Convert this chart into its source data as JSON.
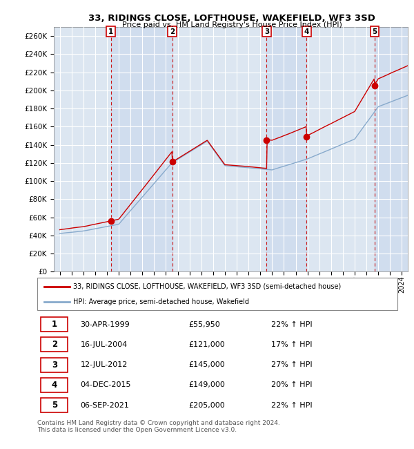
{
  "title": "33, RIDINGS CLOSE, LOFTHOUSE, WAKEFIELD, WF3 3SD",
  "subtitle": "Price paid vs. HM Land Registry's House Price Index (HPI)",
  "sale_dates_float": [
    1999.33,
    2004.54,
    2012.54,
    2015.92,
    2021.68
  ],
  "sale_prices": [
    55950,
    121000,
    145000,
    149000,
    205000
  ],
  "sale_labels": [
    "1",
    "2",
    "3",
    "4",
    "5"
  ],
  "table_rows": [
    [
      "1",
      "30-APR-1999",
      "£55,950",
      "22% ↑ HPI"
    ],
    [
      "2",
      "16-JUL-2004",
      "£121,000",
      "17% ↑ HPI"
    ],
    [
      "3",
      "12-JUL-2012",
      "£145,000",
      "27% ↑ HPI"
    ],
    [
      "4",
      "04-DEC-2015",
      "£149,000",
      "20% ↑ HPI"
    ],
    [
      "5",
      "06-SEP-2021",
      "£205,000",
      "22% ↑ HPI"
    ]
  ],
  "legend_line1": "33, RIDINGS CLOSE, LOFTHOUSE, WAKEFIELD, WF3 3SD (semi-detached house)",
  "legend_line2": "HPI: Average price, semi-detached house, Wakefield",
  "footer": "Contains HM Land Registry data © Crown copyright and database right 2024.\nThis data is licensed under the Open Government Licence v3.0.",
  "sale_color": "#cc0000",
  "hpi_color": "#88aacc",
  "vline_color": "#cc0000",
  "band_color": "#c8d8ec",
  "background_color": "#dce6f1",
  "ylim": [
    0,
    270000
  ],
  "ytick_step": 20000,
  "x_start_year": 1995,
  "x_end_year": 2024
}
